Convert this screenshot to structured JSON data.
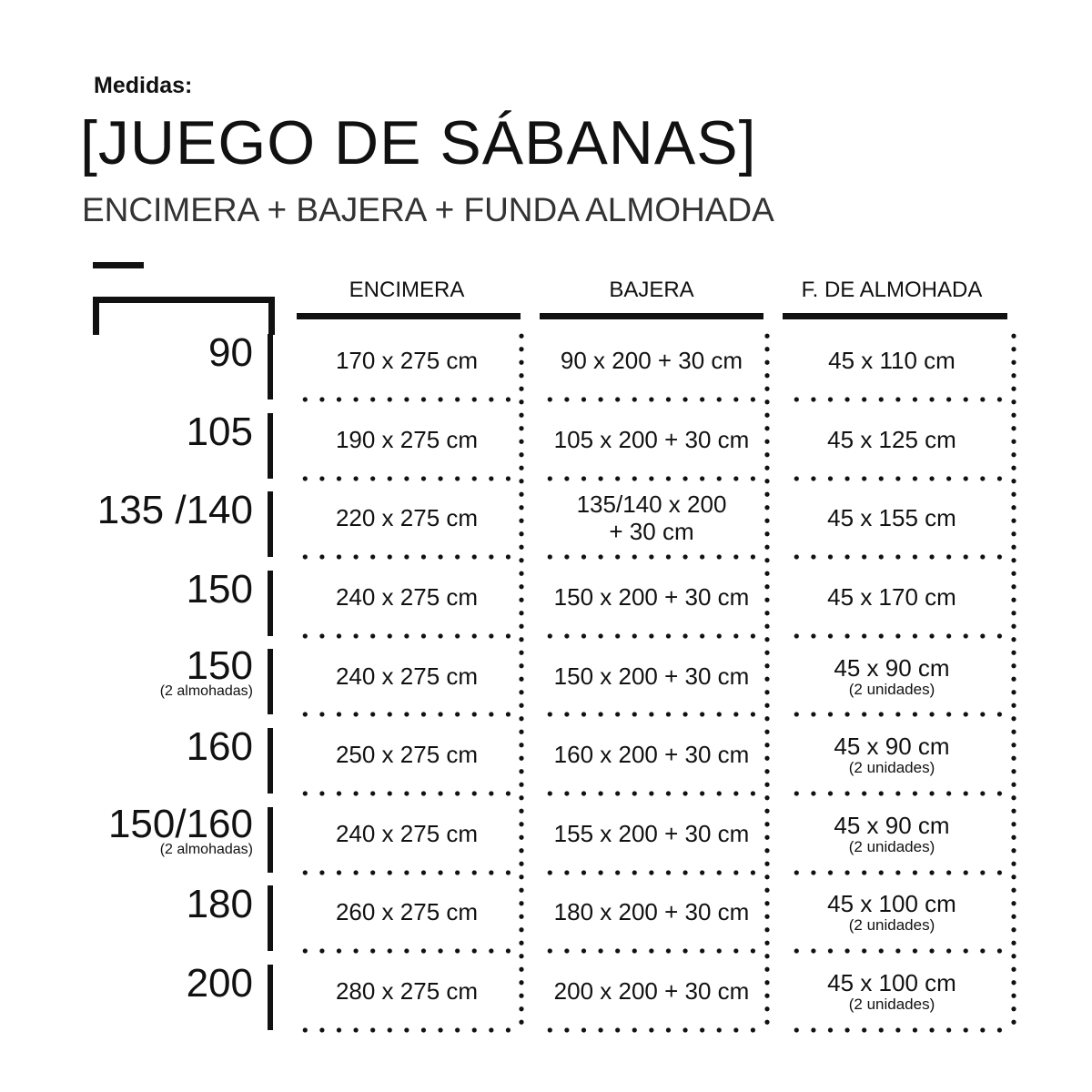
{
  "heading": {
    "label": "Medidas:",
    "title": "[JUEGO DE SÁBANAS]",
    "subtitle": "ENCIMERA  + BAJERA + FUNDA ALMOHADA"
  },
  "icon": "bed-icon",
  "columns": [
    "ENCIMERA",
    "BAJERA",
    "F. DE ALMOHADA"
  ],
  "rows": [
    {
      "size": "90",
      "note": "",
      "encimera": "170 x 275 cm",
      "bajera": "90 x 200 + 30 cm",
      "almohada": "45 x 110  cm",
      "almohada_note": ""
    },
    {
      "size": "105",
      "note": "",
      "encimera": "190 x 275 cm",
      "bajera": "105 x 200 + 30 cm",
      "almohada": "45 x 125  cm",
      "almohada_note": ""
    },
    {
      "size": "135 /140",
      "note": "",
      "encimera": "220 x 275 cm",
      "bajera": "135/140 x 200\n+ 30 cm",
      "almohada": "45 x 155  cm",
      "almohada_note": ""
    },
    {
      "size": "150",
      "note": "",
      "encimera": "240 x 275 cm",
      "bajera": "150 x 200 + 30 cm",
      "almohada": "45 x 170  cm",
      "almohada_note": ""
    },
    {
      "size": "150",
      "note": "(2 almohadas)",
      "encimera": "240 x 275 cm",
      "bajera": "150 x 200 + 30 cm",
      "almohada": "45 x 90 cm",
      "almohada_note": "(2 unidades)"
    },
    {
      "size": "160",
      "note": "",
      "encimera": "250 x 275 cm",
      "bajera": "160 x 200 + 30 cm",
      "almohada": "45 x 90 cm",
      "almohada_note": "(2 unidades)"
    },
    {
      "size": "150/160",
      "note": "(2 almohadas)",
      "encimera": "240 x 275 cm",
      "bajera": "155 x 200 + 30 cm",
      "almohada": "45 x 90 cm",
      "almohada_note": "(2 unidades)"
    },
    {
      "size": "180",
      "note": "",
      "encimera": "260 x 275 cm",
      "bajera": "180 x 200 + 30 cm",
      "almohada": "45 x 100 cm",
      "almohada_note": "(2 unidades)"
    },
    {
      "size": "200",
      "note": "",
      "encimera": "280 x 275 cm",
      "bajera": "200 x 200 + 30 cm",
      "almohada": "45 x 100 cm",
      "almohada_note": "(2 unidades)"
    }
  ]
}
